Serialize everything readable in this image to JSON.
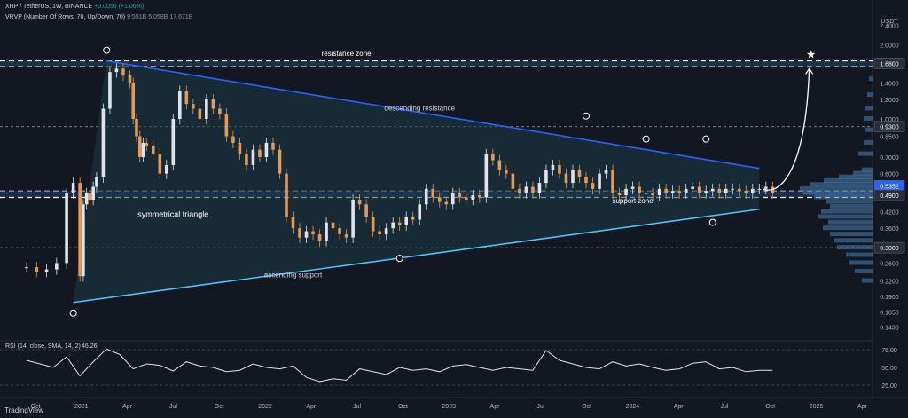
{
  "header": {
    "symbol_line": "XRP / TetherUS, 1W, BINANCE",
    "change": "+0.0056 (+1.06%)",
    "vrvp_label": "VRVP (Number Of Rows, 70, Up/Down, 70)",
    "vrvp_value1": "9.551B",
    "vrvp_value2": "5.058B",
    "vrvp_value3": "17.671B"
  },
  "axis_unit": "USDT",
  "branding": "TradingView",
  "chart_data": {
    "type": "line",
    "price_axis": {
      "scale": "log",
      "ticks": [
        "2.4000",
        "2.0000",
        "1.6800",
        "1.4000",
        "1.2000",
        "1.0000",
        "0.9300",
        "0.8500",
        "0.7000",
        "0.6000",
        "0.5352",
        "0.4900",
        "0.4200",
        "0.3600",
        "0.3000",
        "0.2600",
        "0.2200",
        "0.1900",
        "0.1650",
        "0.1430"
      ],
      "highlighted": [
        "1.6800",
        "0.9300",
        "0.5352",
        "0.4900",
        "0.3000"
      ],
      "range": [
        0.13,
        2.75
      ]
    },
    "time_axis": {
      "ticks": [
        "Oct",
        "2021",
        "Apr",
        "Jul",
        "Oct",
        "2022",
        "Apr",
        "Jul",
        "Oct",
        "2023",
        "Apr",
        "Jul",
        "Oct",
        "2024",
        "Apr",
        "Jul",
        "Oct",
        "2025",
        "Apr"
      ]
    },
    "price_series": {
      "name": "XRP/USDT weekly close",
      "x": [
        0,
        3,
        6,
        9,
        12,
        14,
        16,
        17,
        18,
        19,
        20,
        21,
        23,
        25,
        27,
        29,
        31,
        32,
        33,
        34,
        35,
        36,
        38,
        40,
        42,
        44,
        46,
        48,
        50,
        52,
        54,
        56,
        58,
        60,
        62,
        64,
        66,
        68,
        70,
        72,
        74,
        76,
        78,
        80,
        82,
        84,
        86,
        88,
        90,
        92,
        94,
        96,
        98,
        100,
        102,
        104,
        106,
        108,
        110,
        112,
        114,
        116,
        118,
        120,
        122,
        124,
        126,
        128,
        130,
        132,
        134,
        136,
        138,
        140,
        142,
        144,
        146,
        148,
        150,
        152,
        154,
        156,
        158,
        160,
        162,
        164,
        166,
        168,
        170,
        172,
        174,
        176,
        178,
        180,
        182,
        184,
        186,
        188,
        190,
        192,
        194,
        196,
        198,
        200,
        202,
        204,
        206,
        208,
        210,
        212,
        214,
        216,
        218,
        220,
        222,
        224
      ],
      "y": [
        0.25,
        0.24,
        0.245,
        0.26,
        0.5,
        0.55,
        0.23,
        0.45,
        0.5,
        0.47,
        0.53,
        0.58,
        1.1,
        1.55,
        1.6,
        1.5,
        1.4,
        1.0,
        0.85,
        0.7,
        0.8,
        0.78,
        0.72,
        0.6,
        0.65,
        1.0,
        1.3,
        1.15,
        1.1,
        1.0,
        1.2,
        1.1,
        1.05,
        0.85,
        0.8,
        0.72,
        0.65,
        0.75,
        0.7,
        0.8,
        0.75,
        0.6,
        0.4,
        0.36,
        0.33,
        0.35,
        0.34,
        0.32,
        0.38,
        0.36,
        0.34,
        0.33,
        0.47,
        0.45,
        0.4,
        0.35,
        0.34,
        0.36,
        0.38,
        0.37,
        0.4,
        0.39,
        0.45,
        0.52,
        0.48,
        0.46,
        0.45,
        0.5,
        0.48,
        0.47,
        0.49,
        0.48,
        0.72,
        0.68,
        0.62,
        0.6,
        0.52,
        0.5,
        0.53,
        0.5,
        0.55,
        0.62,
        0.65,
        0.6,
        0.55,
        0.62,
        0.58,
        0.55,
        0.52,
        0.6,
        0.62,
        0.5,
        0.49,
        0.52,
        0.53,
        0.5,
        0.5,
        0.49,
        0.52,
        0.5,
        0.51,
        0.5,
        0.52,
        0.53,
        0.5,
        0.51,
        0.52,
        0.5,
        0.52,
        0.52,
        0.51,
        0.5,
        0.52,
        0.52,
        0.53,
        0.5
      ],
      "color_up": "#e0e3eb",
      "color_down": "#e09a59"
    },
    "rsi": {
      "label": "RSI (14, close, SMA, 14, 2)",
      "value": "46.26",
      "ticks": [
        "75.00",
        "50.00",
        "25.00"
      ],
      "x": [
        0,
        4,
        8,
        12,
        16,
        20,
        24,
        28,
        32,
        36,
        40,
        44,
        48,
        52,
        56,
        60,
        64,
        68,
        72,
        76,
        80,
        84,
        88,
        92,
        96,
        100,
        104,
        108,
        112,
        116,
        120,
        124,
        128,
        132,
        136,
        140,
        144,
        148,
        152,
        156,
        160,
        164,
        168,
        172,
        176,
        180,
        184,
        188,
        192,
        196,
        200,
        204,
        208,
        212,
        216,
        220,
        224
      ],
      "y": [
        60,
        55,
        50,
        65,
        38,
        58,
        76,
        68,
        48,
        55,
        53,
        45,
        58,
        52,
        50,
        44,
        46,
        55,
        50,
        48,
        52,
        36,
        30,
        34,
        32,
        48,
        44,
        40,
        50,
        46,
        48,
        44,
        52,
        54,
        50,
        46,
        50,
        48,
        46,
        74,
        60,
        55,
        50,
        48,
        58,
        52,
        55,
        50,
        46,
        48,
        56,
        58,
        48,
        50,
        44,
        46,
        46
      ],
      "color": "#e0e3eb"
    },
    "annotations": {
      "resistance_zone": "resistance zone",
      "descending_resistance": "descending resistance",
      "symmetrical_triangle": "symmetrical triangle",
      "support_zone": "support zone",
      "ascending_support": "ascending support"
    },
    "levels": {
      "resistance_zone": [
        1.63,
        1.72
      ],
      "support_zone": [
        0.48,
        0.51
      ],
      "dashed": [
        0.93,
        0.3
      ]
    },
    "triangle": {
      "upper": [
        [
          24,
          1.72
        ],
        [
          220,
          0.63
        ]
      ],
      "lower": [
        [
          14,
          0.18
        ],
        [
          220,
          0.43
        ]
      ]
    },
    "projection": {
      "from": [
        221,
        0.52
      ],
      "to": [
        235,
        1.6
      ],
      "target_price": 1.68
    },
    "colors": {
      "background": "#131722",
      "triangle_fill": "#1b3a46",
      "upper_line": "#2962ff",
      "lower_line": "#4fc3f7",
      "zone_fill": "#2a4a7a",
      "volume_profile": "#4a7fb5"
    }
  }
}
